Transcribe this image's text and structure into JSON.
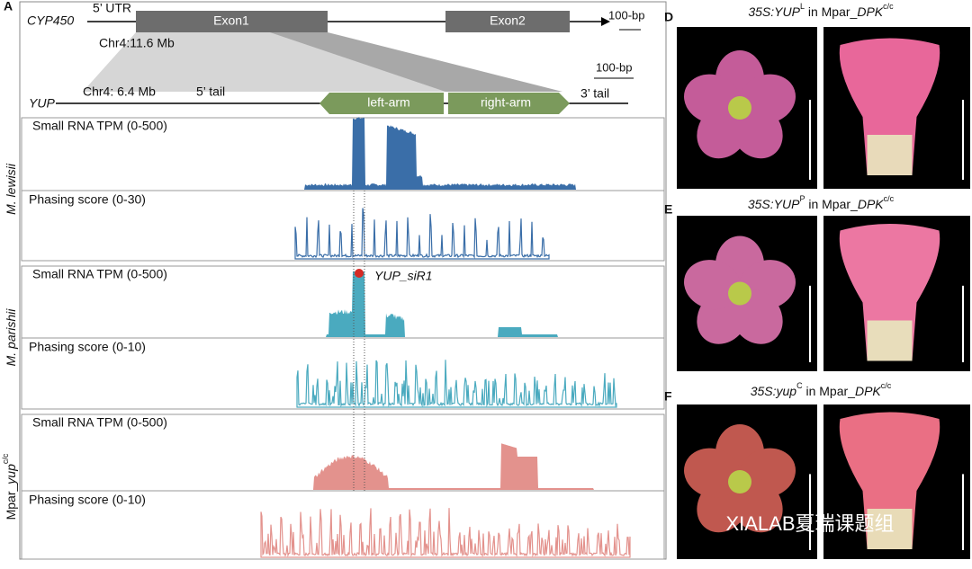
{
  "panel_a": {
    "label": "A",
    "gene_model": {
      "gene1": "CYP450",
      "utr": "5’ UTR",
      "exon1": "Exon1",
      "exon2": "Exon2",
      "scale1": "100-bp",
      "chr1": "Chr4:11.6 Mb",
      "scale2": "100-bp",
      "gene2": "YUP",
      "chr2": "Chr4: 6.4 Mb",
      "tail5": "5’ tail",
      "left_arm": "left-arm",
      "right_arm": "right-arm",
      "tail3": "3’ tail"
    },
    "tracks": [
      {
        "species": [
          "M. lewisii"
        ],
        "small_rna": "Small RNA TPM (0-500)",
        "phasing": "Phasing score (0-30)"
      },
      {
        "species": [
          "M. parishii"
        ],
        "small_rna": "Small RNA TPM (0-500)",
        "phasing": "Phasing score (0-10)",
        "marker": "YUP_siR1"
      },
      {
        "species": [
          "Mpar_",
          "yup",
          "c/c"
        ],
        "small_rna": "Small RNA TPM (0-500)",
        "phasing": "Phasing score (0-10)"
      }
    ]
  },
  "panels": [
    {
      "label": "D",
      "title": [
        "35S:YUP",
        "L",
        " in Mpar_",
        "DPK",
        "c/c"
      ]
    },
    {
      "label": "E",
      "title": [
        "35S:YUP",
        "P",
        " in Mpar_",
        "DPK",
        "c/c"
      ]
    },
    {
      "label": "F",
      "title": [
        "35S:yup",
        "C",
        " in Mpar_",
        "DPK",
        "c/c"
      ]
    }
  ],
  "watermark": "XIALAB夏瑞课题组"
}
